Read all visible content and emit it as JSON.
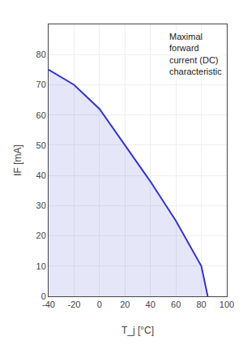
{
  "chart_data": {
    "type": "line",
    "x": [
      -40,
      -20,
      0,
      20,
      40,
      60,
      80,
      85
    ],
    "values": [
      75,
      70,
      62,
      50,
      38,
      25,
      10,
      0
    ],
    "color": "#3333cc",
    "xlabel": "T_j [°C]",
    "ylabel": "IF [mA]",
    "annotations": [
      "Maximal\nforward\ncurrent (DC)\ncharacteristic"
    ],
    "xlim": [
      -40,
      100
    ],
    "ylim": [
      0,
      90
    ],
    "xticks": [
      -40,
      -20,
      0,
      20,
      40,
      60,
      80,
      100
    ],
    "yticks": [
      0,
      10,
      20,
      30,
      40,
      50,
      60,
      70,
      80
    ],
    "grid": true
  }
}
